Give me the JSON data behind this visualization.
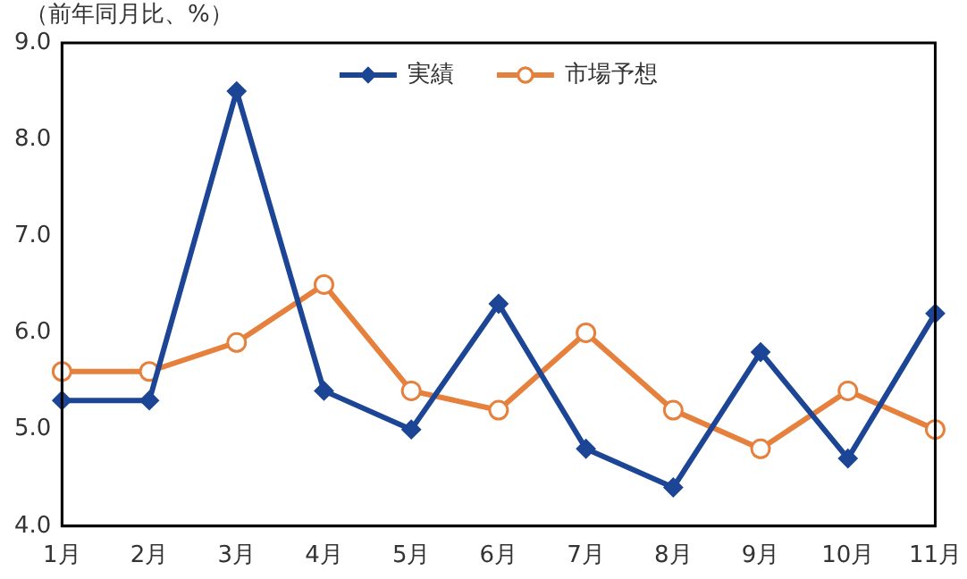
{
  "chart_data": {
    "type": "line",
    "ylabel": "（前年同月比、%）",
    "categories": [
      "1月",
      "2月",
      "3月",
      "4月",
      "5月",
      "6月",
      "7月",
      "8月",
      "9月",
      "10月",
      "11月"
    ],
    "series": [
      {
        "name": "実績",
        "color": "#1c4595",
        "marker": "diamond",
        "values": [
          5.3,
          5.3,
          8.5,
          5.4,
          5.0,
          6.3,
          4.8,
          4.4,
          5.8,
          4.7,
          6.2
        ]
      },
      {
        "name": "市場予想",
        "color": "#e5803d",
        "marker": "circle",
        "values": [
          5.6,
          5.6,
          5.9,
          6.5,
          5.4,
          5.2,
          6.0,
          5.2,
          4.8,
          5.4,
          5.0
        ]
      }
    ],
    "ylim": [
      4,
      9
    ],
    "yticks": [
      {
        "value": 4,
        "label": "4.0"
      },
      {
        "value": 5,
        "label": "5.0"
      },
      {
        "value": 6,
        "label": "6.0"
      },
      {
        "value": 7,
        "label": "7.0"
      },
      {
        "value": 8,
        "label": "8.0"
      },
      {
        "value": 9,
        "label": "9.0"
      }
    ],
    "grid": false,
    "legend": "top",
    "line_style": "solid"
  }
}
